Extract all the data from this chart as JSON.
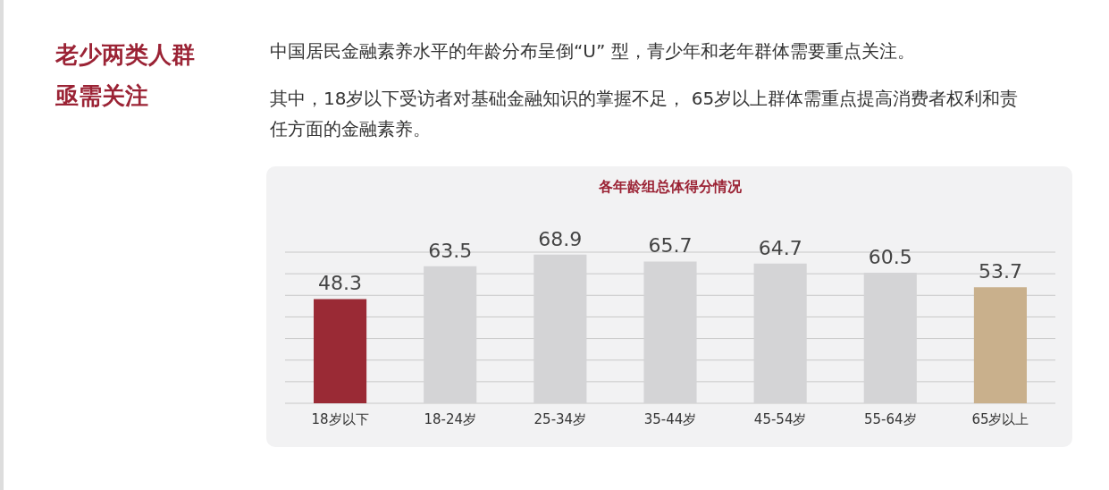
{
  "chart_data": {
    "type": "bar",
    "title": "各年龄组总体得分情况",
    "annotations": [
      "老少两类人群亟需关注",
      "中国居民金融素养水平的年龄分布呈倒“U” 型，青少年和老年群体需要重点关注。",
      "其中，18岁以下受访者对基础金融知识的掌握不足， 65岁以上群体需重点提高消费者权利和责任方面的金融素养。"
    ],
    "categories": [
      "18岁以下",
      "18-24岁",
      "25-34岁",
      "35-44岁",
      "45-54岁",
      "55-64岁",
      "65岁以上"
    ],
    "values": [
      48.3,
      63.5,
      68.9,
      65.7,
      64.7,
      60.5,
      53.7
    ],
    "colors": [
      "#9a2a35",
      "#d4d4d6",
      "#d4d4d6",
      "#d4d4d6",
      "#d4d4d6",
      "#d4d4d6",
      "#c9b08c"
    ],
    "ylim": [
      0,
      70
    ],
    "yticks": [
      {
        "value": 0,
        "label": null
      },
      {
        "value": 10,
        "label": null
      },
      {
        "value": 20,
        "label": null
      },
      {
        "value": 30,
        "label": null
      },
      {
        "value": 40,
        "label": null
      },
      {
        "value": 50,
        "label": null
      },
      {
        "value": 60,
        "label": null
      },
      {
        "value": 70,
        "label": null
      }
    ],
    "grid": true,
    "tick_labels": "x",
    "data_labels": true
  }
}
